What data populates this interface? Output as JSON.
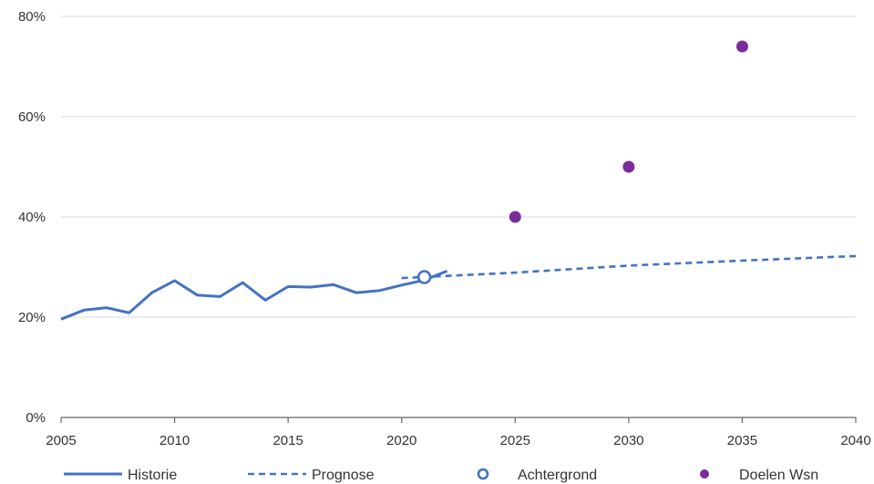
{
  "chart_data": {
    "type": "line",
    "x_ticks": [
      2005,
      2010,
      2015,
      2020,
      2025,
      2030,
      2035,
      2040
    ],
    "y_ticks": [
      0,
      20,
      40,
      60,
      80
    ],
    "y_tick_labels": [
      "0%",
      "20%",
      "40%",
      "60%",
      "80%"
    ],
    "xlim": [
      2005,
      2040
    ],
    "ylim": [
      0,
      80
    ],
    "grid": "horizontal",
    "legend_position": "bottom",
    "colors": {
      "line": "#4472c4",
      "goal": "#7b2c9c",
      "grid": "#d9d9d9",
      "axis": "#666666"
    },
    "series": [
      {
        "name": "Historie",
        "style": "solid",
        "x": [
          2005,
          2006,
          2007,
          2008,
          2009,
          2010,
          2011,
          2012,
          2013,
          2014,
          2015,
          2016,
          2017,
          2018,
          2019,
          2020,
          2021,
          2022
        ],
        "y": [
          19.6,
          21.4,
          21.9,
          20.9,
          24.9,
          27.3,
          24.4,
          24.1,
          26.9,
          23.4,
          26.1,
          26.0,
          26.5,
          24.9,
          25.3,
          26.4,
          27.4,
          29.2
        ]
      },
      {
        "name": "Prognose",
        "style": "dashed",
        "x": [
          2020,
          2025,
          2030,
          2035,
          2040
        ],
        "y": [
          27.8,
          28.9,
          30.3,
          31.3,
          32.2
        ]
      },
      {
        "name": "Achtergrond",
        "style": "open-marker",
        "x": [
          2021
        ],
        "y": [
          28.0
        ]
      },
      {
        "name": "Doelen Wsn",
        "style": "filled-marker",
        "x": [
          2025,
          2030,
          2035
        ],
        "y": [
          40,
          50,
          74
        ]
      }
    ]
  }
}
